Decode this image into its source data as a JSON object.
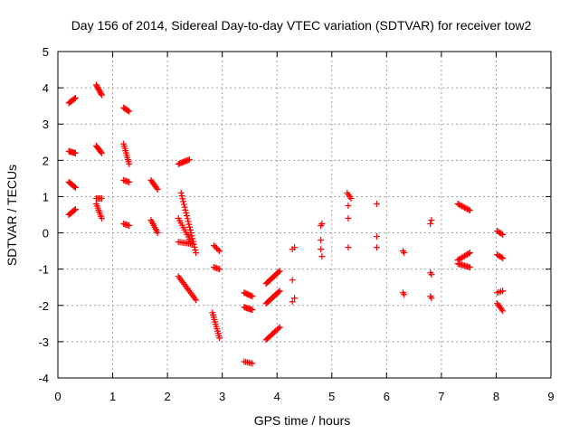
{
  "chart_data": {
    "type": "scatter",
    "title": "Day 156 of 2014, Sidereal Day-to-day VTEC variation (SDTVAR) for receiver tow2",
    "xlabel": "GPS time / hours",
    "ylabel": "SDTVAR / TECUs",
    "xlim": [
      0,
      9
    ],
    "ylim": [
      -4,
      5
    ],
    "xticks": [
      "0",
      "1",
      "2",
      "3",
      "4",
      "5",
      "6",
      "7",
      "8",
      "9"
    ],
    "yticks": [
      "-4",
      "-3",
      "-2",
      "-1",
      "0",
      "1",
      "2",
      "3",
      "4",
      "5"
    ],
    "grid": true,
    "marker": "plus",
    "color": "#ff0000",
    "segments": [
      {
        "x0": 0.2,
        "y0": 3.58,
        "x1": 0.32,
        "y1": 3.72,
        "n": 8
      },
      {
        "x0": 0.2,
        "y0": 2.25,
        "x1": 0.32,
        "y1": 2.2,
        "n": 8
      },
      {
        "x0": 0.2,
        "y0": 1.4,
        "x1": 0.32,
        "y1": 1.25,
        "n": 8
      },
      {
        "x0": 0.2,
        "y0": 0.5,
        "x1": 0.32,
        "y1": 0.65,
        "n": 8
      },
      {
        "x0": 0.7,
        "y0": 4.08,
        "x1": 0.8,
        "y1": 3.8,
        "n": 9
      },
      {
        "x0": 0.7,
        "y0": 2.4,
        "x1": 0.8,
        "y1": 2.2,
        "n": 8
      },
      {
        "x0": 0.7,
        "y0": 0.95,
        "x1": 0.8,
        "y1": 0.95,
        "n": 5
      },
      {
        "x0": 0.7,
        "y0": 0.8,
        "x1": 0.8,
        "y1": 0.4,
        "n": 8
      },
      {
        "x0": 1.2,
        "y0": 3.45,
        "x1": 1.3,
        "y1": 3.35,
        "n": 6
      },
      {
        "x0": 1.2,
        "y0": 2.45,
        "x1": 1.3,
        "y1": 1.9,
        "n": 10
      },
      {
        "x0": 1.2,
        "y0": 1.45,
        "x1": 1.3,
        "y1": 1.4,
        "n": 5
      },
      {
        "x0": 1.2,
        "y0": 0.25,
        "x1": 1.3,
        "y1": 0.2,
        "n": 5
      },
      {
        "x0": 1.7,
        "y0": 1.45,
        "x1": 1.82,
        "y1": 1.2,
        "n": 8
      },
      {
        "x0": 1.7,
        "y0": 0.35,
        "x1": 1.82,
        "y1": 0.0,
        "n": 8
      },
      {
        "x0": 2.2,
        "y0": 1.9,
        "x1": 2.4,
        "y1": 2.02,
        "n": 10
      },
      {
        "x0": 2.25,
        "y0": 1.1,
        "x1": 2.52,
        "y1": -0.55,
        "n": 22
      },
      {
        "x0": 2.2,
        "y0": 0.4,
        "x1": 2.45,
        "y1": -0.3,
        "n": 12
      },
      {
        "x0": 2.2,
        "y0": -0.25,
        "x1": 2.42,
        "y1": -0.3,
        "n": 8
      },
      {
        "x0": 2.2,
        "y0": -1.2,
        "x1": 2.52,
        "y1": -1.85,
        "n": 16
      },
      {
        "x0": 2.85,
        "y0": -0.35,
        "x1": 2.95,
        "y1": -0.5,
        "n": 5
      },
      {
        "x0": 2.85,
        "y0": -0.95,
        "x1": 2.95,
        "y1": -1.0,
        "n": 5
      },
      {
        "x0": 2.82,
        "y0": -2.2,
        "x1": 2.95,
        "y1": -2.9,
        "n": 12
      },
      {
        "x0": 3.4,
        "y0": -1.65,
        "x1": 3.55,
        "y1": -1.75,
        "n": 8
      },
      {
        "x0": 3.4,
        "y0": -2.05,
        "x1": 3.55,
        "y1": -2.12,
        "n": 8
      },
      {
        "x0": 3.4,
        "y0": -3.55,
        "x1": 3.55,
        "y1": -3.6,
        "n": 6
      },
      {
        "x0": 3.8,
        "y0": -1.4,
        "x1": 4.05,
        "y1": -1.05,
        "n": 14
      },
      {
        "x0": 3.8,
        "y0": -1.95,
        "x1": 4.05,
        "y1": -1.6,
        "n": 14
      },
      {
        "x0": 3.8,
        "y0": -2.95,
        "x1": 4.05,
        "y1": -2.6,
        "n": 12
      },
      {
        "x0": 4.28,
        "y0": -0.45,
        "x1": 4.32,
        "y1": -0.4,
        "n": 2
      },
      {
        "x0": 4.28,
        "y0": -1.3,
        "x1": 4.28,
        "y1": -1.3,
        "n": 1
      },
      {
        "x0": 4.28,
        "y0": -1.9,
        "x1": 4.32,
        "y1": -1.8,
        "n": 2
      },
      {
        "x0": 4.8,
        "y0": 0.2,
        "x1": 4.82,
        "y1": 0.25,
        "n": 2
      },
      {
        "x0": 4.8,
        "y0": -0.2,
        "x1": 4.8,
        "y1": -0.2,
        "n": 1
      },
      {
        "x0": 4.8,
        "y0": -0.45,
        "x1": 4.82,
        "y1": -0.65,
        "n": 2
      },
      {
        "x0": 5.28,
        "y0": 1.1,
        "x1": 5.35,
        "y1": 0.95,
        "n": 4
      },
      {
        "x0": 5.3,
        "y0": 0.75,
        "x1": 5.3,
        "y1": 0.75,
        "n": 1
      },
      {
        "x0": 5.3,
        "y0": 0.4,
        "x1": 5.3,
        "y1": 0.4,
        "n": 1
      },
      {
        "x0": 5.3,
        "y0": -0.4,
        "x1": 5.3,
        "y1": -0.4,
        "n": 1
      },
      {
        "x0": 5.82,
        "y0": 0.8,
        "x1": 5.82,
        "y1": 0.8,
        "n": 1
      },
      {
        "x0": 5.82,
        "y0": -0.1,
        "x1": 5.82,
        "y1": -0.1,
        "n": 1
      },
      {
        "x0": 5.82,
        "y0": -0.4,
        "x1": 5.82,
        "y1": -0.4,
        "n": 1
      },
      {
        "x0": 6.3,
        "y0": -0.5,
        "x1": 6.32,
        "y1": -0.55,
        "n": 2
      },
      {
        "x0": 6.3,
        "y0": -1.65,
        "x1": 6.32,
        "y1": -1.7,
        "n": 2
      },
      {
        "x0": 6.8,
        "y0": 0.25,
        "x1": 6.82,
        "y1": 0.35,
        "n": 2
      },
      {
        "x0": 6.8,
        "y0": -1.1,
        "x1": 6.82,
        "y1": -1.15,
        "n": 2
      },
      {
        "x0": 6.8,
        "y0": -1.75,
        "x1": 6.82,
        "y1": -1.8,
        "n": 2
      },
      {
        "x0": 7.3,
        "y0": 0.8,
        "x1": 7.52,
        "y1": 0.62,
        "n": 10
      },
      {
        "x0": 7.3,
        "y0": -0.75,
        "x1": 7.52,
        "y1": -0.55,
        "n": 10
      },
      {
        "x0": 7.3,
        "y0": -0.85,
        "x1": 7.52,
        "y1": -0.95,
        "n": 10
      },
      {
        "x0": 8.02,
        "y0": 0.05,
        "x1": 8.12,
        "y1": -0.05,
        "n": 5
      },
      {
        "x0": 8.02,
        "y0": -0.6,
        "x1": 8.12,
        "y1": -0.7,
        "n": 5
      },
      {
        "x0": 8.02,
        "y0": -1.65,
        "x1": 8.12,
        "y1": -1.6,
        "n": 4
      },
      {
        "x0": 8.02,
        "y0": -1.95,
        "x1": 8.12,
        "y1": -2.15,
        "n": 6
      }
    ]
  }
}
